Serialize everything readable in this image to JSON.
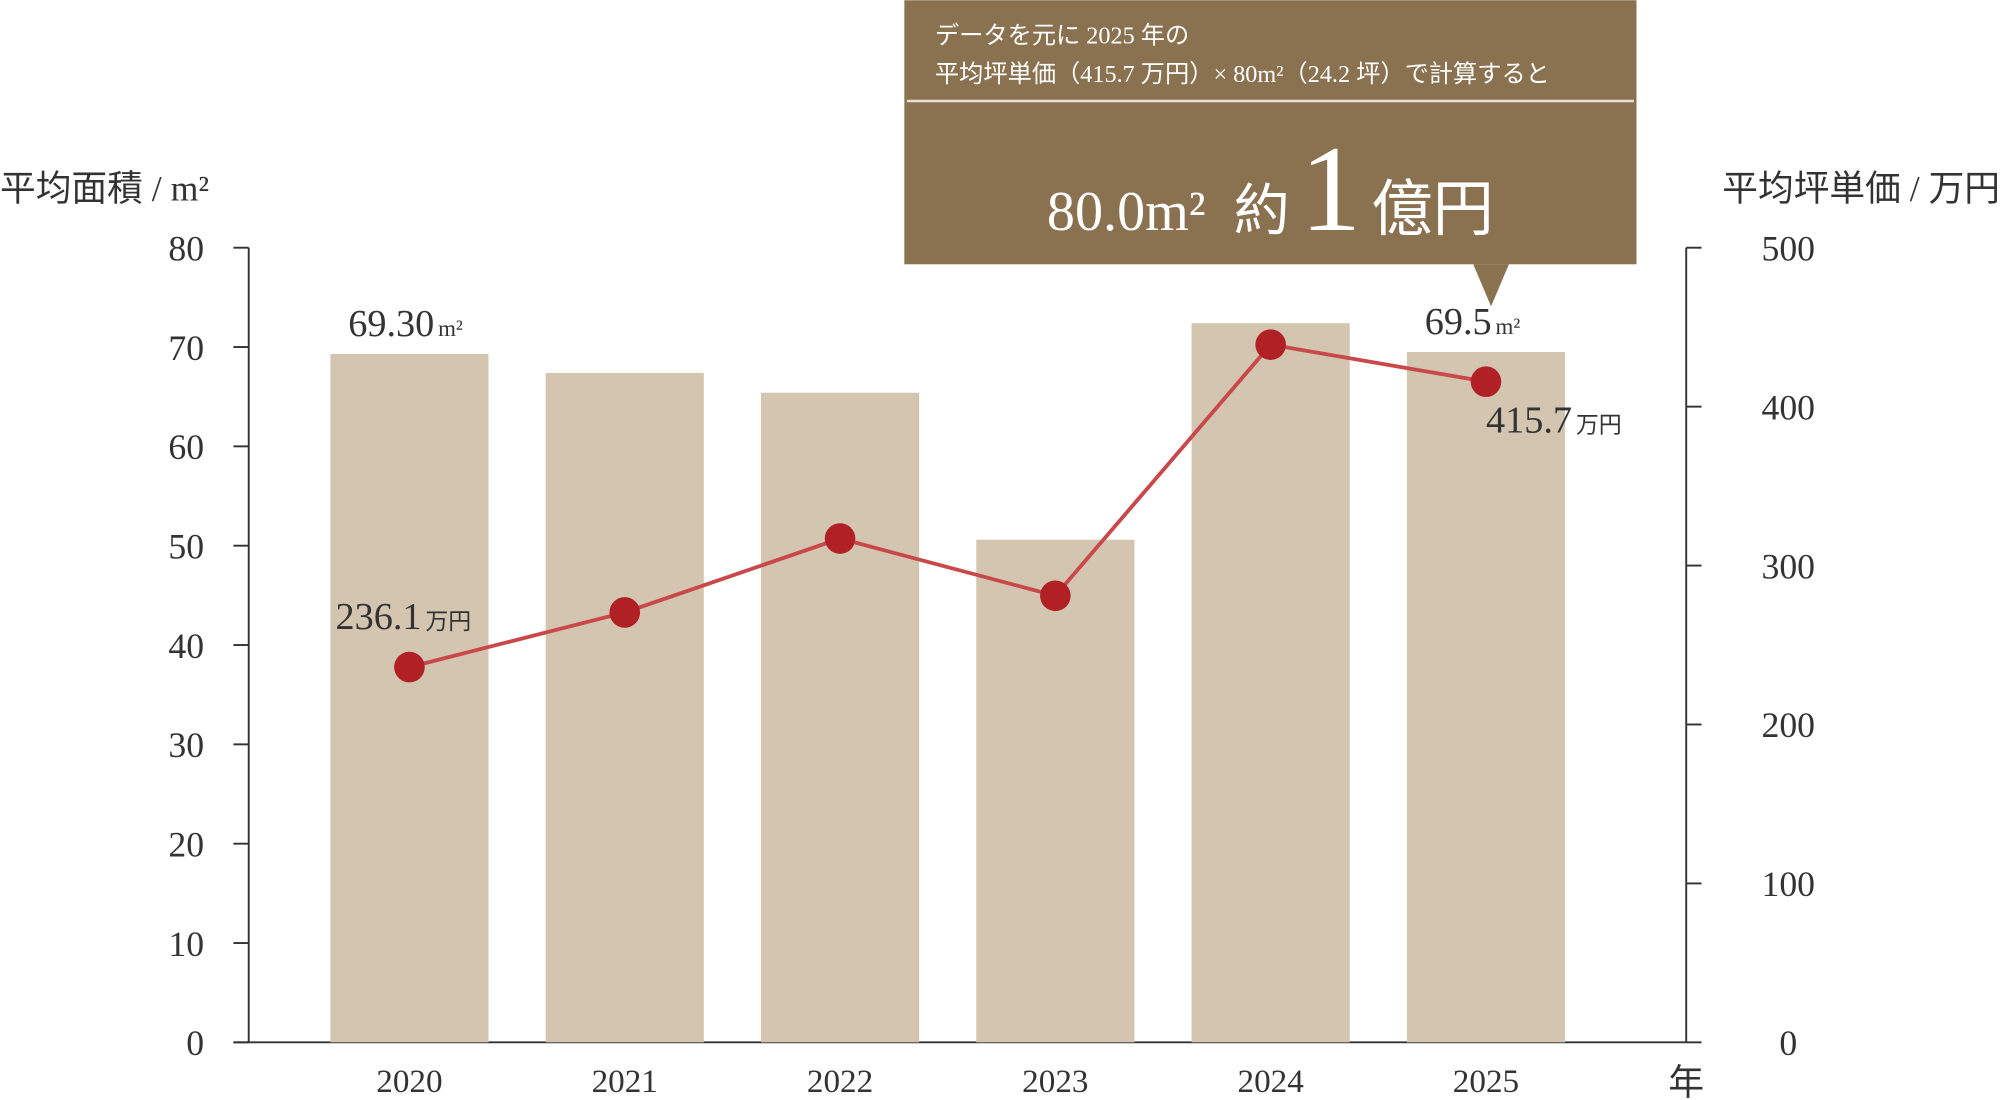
{
  "chart_data": {
    "type": "bar-line",
    "y_title": "平均面積 / m²",
    "y2_title": "平均坪単価 / 万円",
    "x_suffix": "年",
    "categories": [
      "2020",
      "2021",
      "2022",
      "2023",
      "2024",
      "2025"
    ],
    "series": [
      {
        "type": "bar",
        "color": "#d3c5b0",
        "values": [
          69.3,
          67.4,
          65.4,
          50.6,
          72.4,
          69.5
        ],
        "value_labels": [
          "69.30",
          null,
          null,
          null,
          null,
          "69.5"
        ],
        "unit": "m²"
      },
      {
        "type": "line",
        "axis": "y2",
        "color": "#c9484a",
        "marker_color": "#b02025",
        "values": [
          236.1,
          270.5,
          317,
          281,
          439,
          415.7
        ],
        "value_labels": [
          "236.1",
          null,
          null,
          null,
          null,
          "415.7"
        ],
        "unit": "万円"
      }
    ],
    "ylim": [
      0,
      80
    ],
    "yticks": [
      0,
      10,
      20,
      30,
      40,
      50,
      60,
      70,
      80
    ],
    "y2lim": [
      0,
      500
    ],
    "y2ticks": [
      0,
      100,
      200,
      300,
      400,
      500
    ],
    "callout": {
      "lines": [
        "データを元に 2025 年の",
        "平均坪単価（415.7 万円）× 80m²（24.2 坪）で計算すると"
      ],
      "area": "80.0m²",
      "approx": "約",
      "number": "1",
      "unit": "億円",
      "color": "#8a7150"
    }
  }
}
